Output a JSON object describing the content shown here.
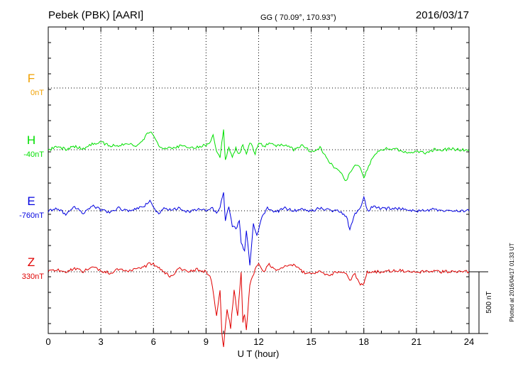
{
  "header": {
    "station": "Pebek (PBK)  [AARI]",
    "coords": "GG ( 70.09°, 170.93°)",
    "date": "2016/03/17"
  },
  "footer_note": "Plotted at 2016/04/17 01:33 UT",
  "colors": {
    "F": "#f0a000",
    "H": "#00e000",
    "E": "#0000e0",
    "Z": "#e00000",
    "axis": "#000000"
  },
  "chart_data": {
    "type": "line",
    "title": "",
    "xlabel": "U T (hour)",
    "ylabel": "",
    "xlim": [
      0,
      24
    ],
    "x_ticks": [
      "0",
      "3",
      "6",
      "9",
      "12",
      "15",
      "18",
      "21",
      "24"
    ],
    "grid": true,
    "scale_bar": {
      "label": "500 nT",
      "value_nT": 500
    },
    "series": [
      {
        "name": "F",
        "offset_label": "0nT",
        "color": "#f0a000",
        "x": [],
        "values": []
      },
      {
        "name": "H",
        "offset_label": "-40nT",
        "color": "#00e000",
        "x": [
          0,
          0.5,
          1.0,
          1.5,
          2.0,
          2.5,
          3.0,
          3.5,
          4.0,
          4.5,
          5.0,
          5.4,
          5.6,
          5.8,
          6.0,
          6.3,
          6.6,
          7.0,
          7.5,
          8.0,
          8.5,
          9.0,
          9.2,
          9.4,
          9.6,
          9.8,
          9.9,
          10.0,
          10.1,
          10.3,
          10.5,
          10.7,
          10.9,
          11.1,
          11.3,
          11.5,
          11.8,
          12.0,
          12.3,
          12.6,
          13.0,
          13.5,
          14.0,
          14.5,
          15.0,
          15.5,
          16.0,
          16.3,
          16.6,
          16.8,
          17.0,
          17.2,
          17.5,
          17.8,
          18.0,
          18.2,
          18.5,
          18.8,
          19.0,
          19.5,
          20.0,
          20.5,
          21.0,
          21.5,
          22.0,
          22.5,
          23.0,
          23.5,
          24.0
        ],
        "values": [
          0,
          20,
          5,
          25,
          10,
          45,
          60,
          35,
          30,
          55,
          35,
          70,
          130,
          150,
          110,
          30,
          10,
          15,
          30,
          15,
          20,
          40,
          60,
          110,
          -20,
          -60,
          50,
          165,
          -80,
          20,
          -60,
          10,
          -40,
          40,
          -30,
          60,
          -30,
          60,
          20,
          60,
          30,
          40,
          0,
          40,
          -20,
          20,
          -100,
          -140,
          -160,
          -220,
          -260,
          -180,
          -120,
          -140,
          -220,
          -160,
          -60,
          -20,
          0,
          10,
          0,
          -20,
          -10,
          -30,
          0,
          0,
          5,
          0,
          -5
        ]
      },
      {
        "name": "E",
        "offset_label": "-760nT",
        "color": "#0000e0",
        "x": [
          0,
          0.5,
          1.0,
          1.5,
          2.0,
          2.5,
          3.0,
          3.5,
          4.0,
          4.5,
          5.0,
          5.5,
          5.8,
          6.0,
          6.3,
          6.6,
          7.0,
          7.5,
          8.0,
          8.5,
          9.0,
          9.3,
          9.6,
          9.8,
          10.0,
          10.1,
          10.3,
          10.5,
          10.7,
          10.9,
          11.0,
          11.2,
          11.3,
          11.5,
          11.7,
          11.9,
          12.2,
          12.5,
          13.0,
          13.5,
          14.0,
          14.5,
          15.0,
          15.5,
          16.0,
          16.5,
          17.0,
          17.2,
          17.5,
          17.8,
          18.0,
          18.2,
          18.5,
          19.0,
          20.0,
          21.0,
          22.0,
          23.0,
          24.0
        ],
        "values": [
          0,
          20,
          -30,
          30,
          -20,
          40,
          10,
          -10,
          20,
          0,
          10,
          40,
          90,
          20,
          -30,
          20,
          10,
          20,
          -10,
          10,
          0,
          30,
          -20,
          30,
          160,
          -80,
          40,
          -120,
          -150,
          -80,
          -260,
          -320,
          -150,
          -440,
          -100,
          -200,
          -50,
          20,
          -10,
          20,
          0,
          10,
          0,
          20,
          5,
          0,
          -40,
          -150,
          -20,
          20,
          120,
          0,
          30,
          20,
          20,
          0,
          10,
          0,
          0
        ]
      },
      {
        "name": "Z",
        "offset_label": "330nT",
        "color": "#e00000",
        "x": [
          0,
          0.5,
          1.0,
          1.5,
          2.0,
          2.5,
          3.0,
          3.5,
          4.0,
          4.5,
          5.0,
          5.5,
          5.8,
          6.0,
          6.4,
          6.8,
          7.0,
          7.5,
          8.0,
          8.5,
          9.0,
          9.3,
          9.6,
          9.8,
          9.9,
          10.0,
          10.1,
          10.2,
          10.4,
          10.6,
          10.8,
          11.0,
          11.1,
          11.2,
          11.3,
          11.5,
          11.8,
          12.0,
          12.3,
          12.6,
          13.0,
          13.5,
          14.0,
          14.5,
          15.0,
          15.5,
          16.0,
          16.5,
          17.0,
          17.2,
          17.5,
          17.8,
          18.0,
          18.2,
          18.5,
          19.0,
          20.0,
          21.0,
          22.0,
          23.0,
          24.0
        ],
        "values": [
          0,
          20,
          -10,
          30,
          0,
          40,
          10,
          -10,
          20,
          0,
          30,
          40,
          70,
          60,
          20,
          -20,
          -40,
          30,
          0,
          20,
          0,
          -60,
          -350,
          -150,
          -480,
          -620,
          -450,
          -300,
          -450,
          -150,
          -350,
          -10,
          -400,
          -350,
          -470,
          -100,
          20,
          60,
          0,
          60,
          10,
          40,
          60,
          0,
          -20,
          0,
          -30,
          0,
          -20,
          -70,
          -20,
          -110,
          -90,
          0,
          0,
          0,
          10,
          0,
          0,
          0,
          0
        ]
      }
    ]
  }
}
